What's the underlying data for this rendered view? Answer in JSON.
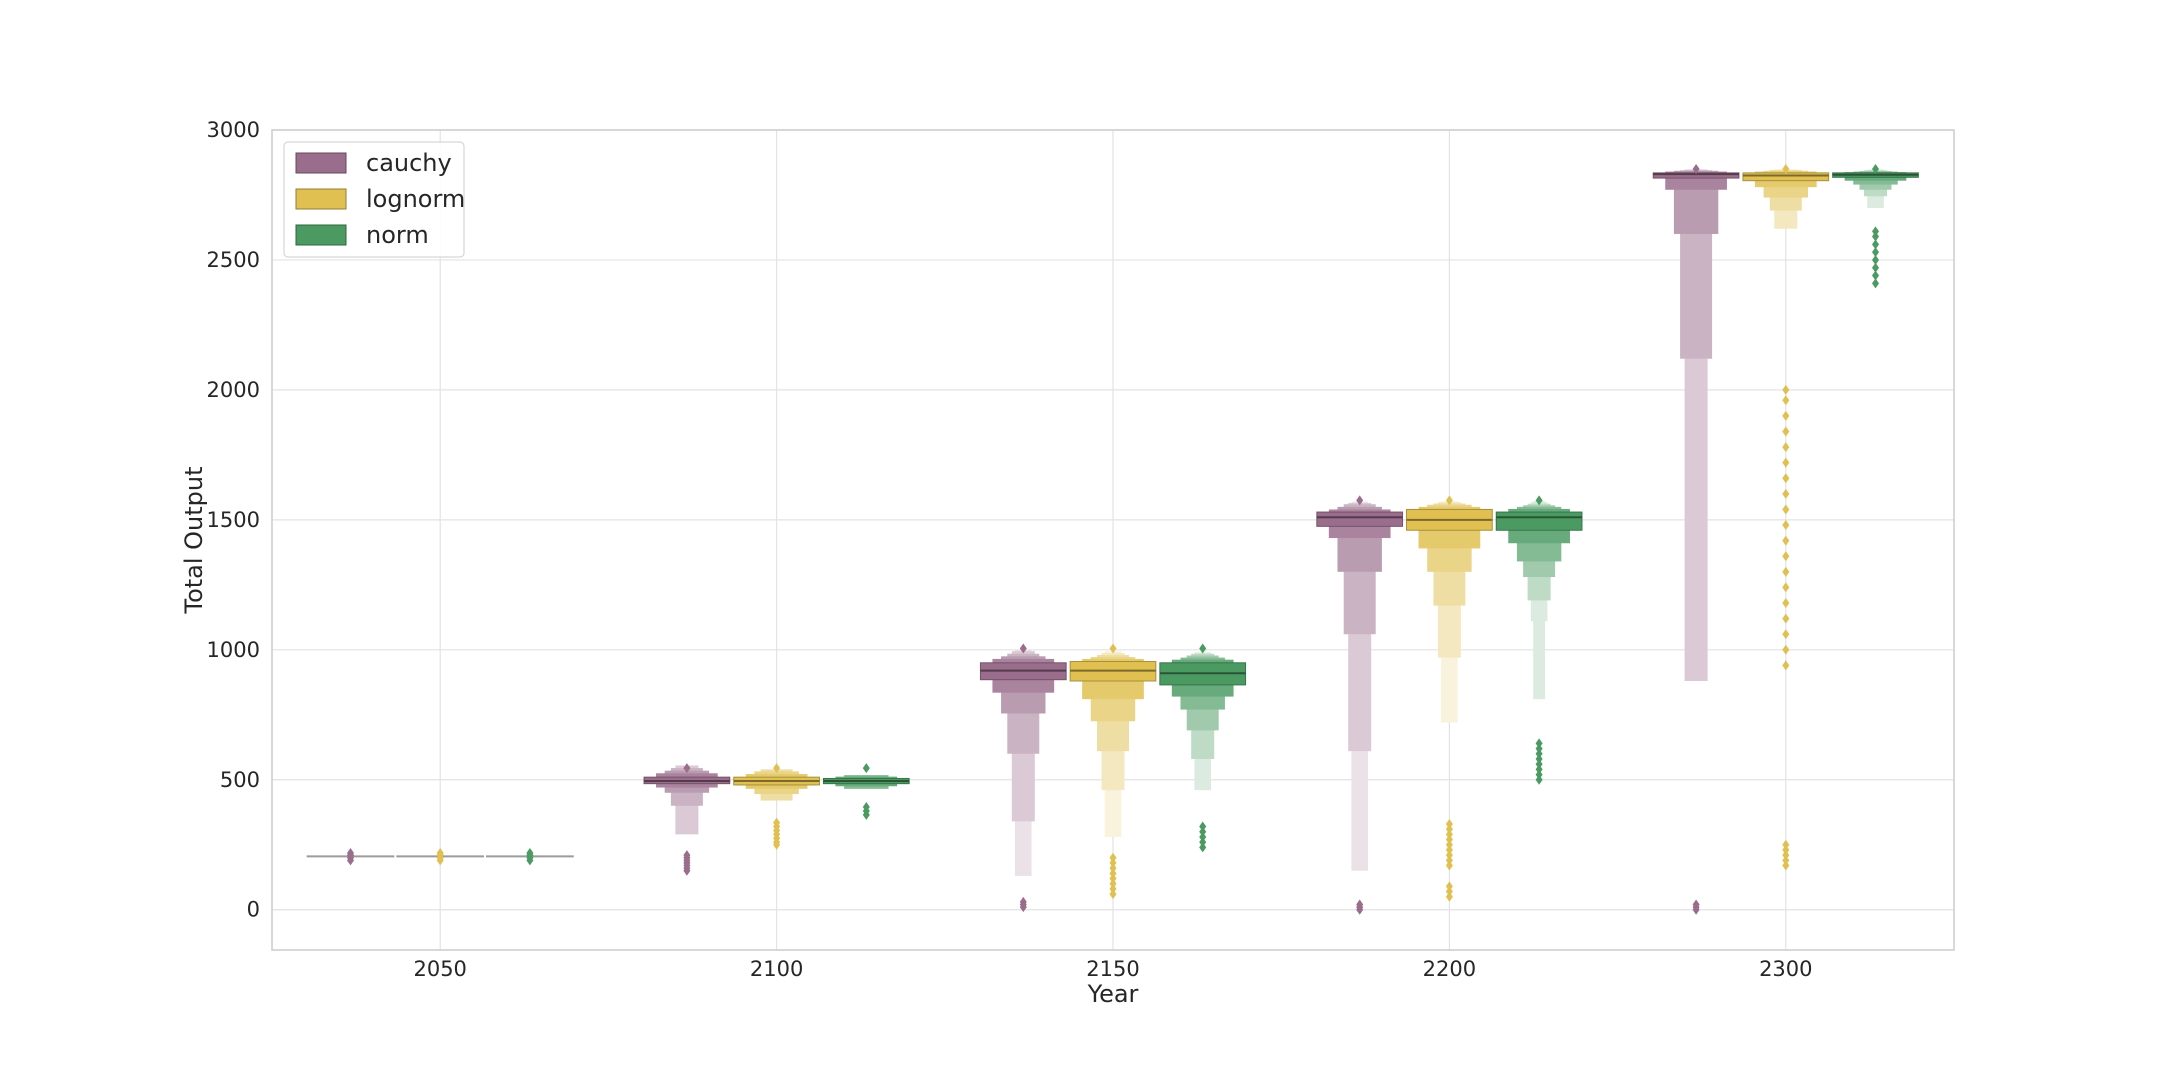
{
  "chart_data": {
    "type": "boxen",
    "xlabel": "Year",
    "ylabel": "Total Output",
    "categories": [
      "2050",
      "2100",
      "2150",
      "2200",
      "2300"
    ],
    "ylim": [
      -155,
      3000
    ],
    "yticks": [
      0,
      500,
      1000,
      1500,
      2000,
      2500,
      3000
    ],
    "grid": true,
    "legend_position": "top-left",
    "series": [
      {
        "name": "cauchy",
        "color": "#9a6d8c",
        "boxes": [
          {
            "median": 205,
            "levels": [],
            "outliers": [
              190,
              200,
              210,
              218
            ]
          },
          {
            "median": 495,
            "levels": [
              [
                485,
                510
              ],
              [
                470,
                525
              ],
              [
                450,
                535
              ],
              [
                400,
                545
              ],
              [
                290,
                555
              ]
            ],
            "outliers": [
              150,
              160,
              170,
              180,
              190,
              200,
              210,
              545
            ]
          },
          {
            "median": 920,
            "levels": [
              [
                885,
                950
              ],
              [
                835,
                965
              ],
              [
                755,
                975
              ],
              [
                600,
                985
              ],
              [
                340,
                995
              ],
              [
                130,
                1000
              ]
            ],
            "outliers": [
              10,
              20,
              30,
              1005
            ]
          },
          {
            "median": 1510,
            "levels": [
              [
                1475,
                1530
              ],
              [
                1430,
                1540
              ],
              [
                1300,
                1550
              ],
              [
                1060,
                1560
              ],
              [
                610,
                1565
              ],
              [
                150,
                1570
              ]
            ],
            "outliers": [
              0,
              10,
              20,
              1575
            ]
          },
          {
            "median": 2830,
            "levels": [
              [
                2815,
                2835
              ],
              [
                2770,
                2840
              ],
              [
                2600,
                2843
              ],
              [
                2120,
                2845
              ],
              [
                880,
                2848
              ]
            ],
            "outliers": [
              0,
              10,
              20,
              2850
            ]
          }
        ]
      },
      {
        "name": "lognorm",
        "color": "#e0c050",
        "boxes": [
          {
            "median": 205,
            "levels": [],
            "outliers": [
              190,
              200,
              210,
              218
            ]
          },
          {
            "median": 495,
            "levels": [
              [
                480,
                510
              ],
              [
                465,
                522
              ],
              [
                445,
                532
              ],
              [
                420,
                540
              ]
            ],
            "outliers": [
              250,
              260,
              275,
              290,
              305,
              320,
              335,
              545
            ]
          },
          {
            "median": 920,
            "levels": [
              [
                880,
                955
              ],
              [
                810,
                965
              ],
              [
                725,
                972
              ],
              [
                610,
                980
              ],
              [
                460,
                988
              ],
              [
                280,
                995
              ]
            ],
            "outliers": [
              60,
              80,
              100,
              120,
              140,
              160,
              180,
              200,
              1005
            ]
          },
          {
            "median": 1500,
            "levels": [
              [
                1460,
                1540
              ],
              [
                1390,
                1550
              ],
              [
                1300,
                1558
              ],
              [
                1170,
                1563
              ],
              [
                970,
                1568
              ],
              [
                720,
                1572
              ]
            ],
            "outliers": [
              50,
              70,
              90,
              170,
              190,
              210,
              230,
              250,
              270,
              290,
              310,
              330,
              1575
            ]
          },
          {
            "median": 2825,
            "levels": [
              [
                2805,
                2835
              ],
              [
                2780,
                2840
              ],
              [
                2740,
                2843
              ],
              [
                2690,
                2846
              ],
              [
                2620,
                2848
              ]
            ],
            "outliers": [
              170,
              190,
              210,
              230,
              250,
              940,
              1000,
              1060,
              1120,
              1180,
              1240,
              1300,
              1360,
              1420,
              1480,
              1540,
              1600,
              1660,
              1720,
              1780,
              1840,
              1900,
              1960,
              2000,
              2850
            ]
          }
        ]
      },
      {
        "name": "norm",
        "color": "#4a9a62",
        "boxes": [
          {
            "median": 205,
            "levels": [],
            "outliers": [
              190,
              200,
              210,
              218
            ]
          },
          {
            "median": 495,
            "levels": [
              [
                485,
                505
              ],
              [
                475,
                512
              ],
              [
                465,
                518
              ]
            ],
            "outliers": [
              365,
              380,
              395,
              545
            ]
          },
          {
            "median": 910,
            "levels": [
              [
                865,
                950
              ],
              [
                820,
                962
              ],
              [
                770,
                970
              ],
              [
                690,
                978
              ],
              [
                580,
                985
              ],
              [
                460,
                990
              ]
            ],
            "outliers": [
              240,
              260,
              280,
              300,
              320,
              1005
            ]
          },
          {
            "median": 1510,
            "levels": [
              [
                1460,
                1530
              ],
              [
                1410,
                1542
              ],
              [
                1340,
                1550
              ],
              [
                1280,
                1556
              ],
              [
                1190,
                1562
              ],
              [
                1110,
                1568
              ],
              [
                810,
                1572
              ]
            ],
            "outliers": [
              500,
              520,
              540,
              560,
              580,
              600,
              620,
              640,
              1575
            ]
          },
          {
            "median": 2828,
            "levels": [
              [
                2818,
                2835
              ],
              [
                2805,
                2838
              ],
              [
                2790,
                2840
              ],
              [
                2770,
                2842
              ],
              [
                2745,
                2845
              ],
              [
                2700,
                2848
              ]
            ],
            "outliers": [
              2410,
              2440,
              2470,
              2500,
              2530,
              2560,
              2590,
              2610,
              2850
            ]
          }
        ]
      }
    ]
  }
}
